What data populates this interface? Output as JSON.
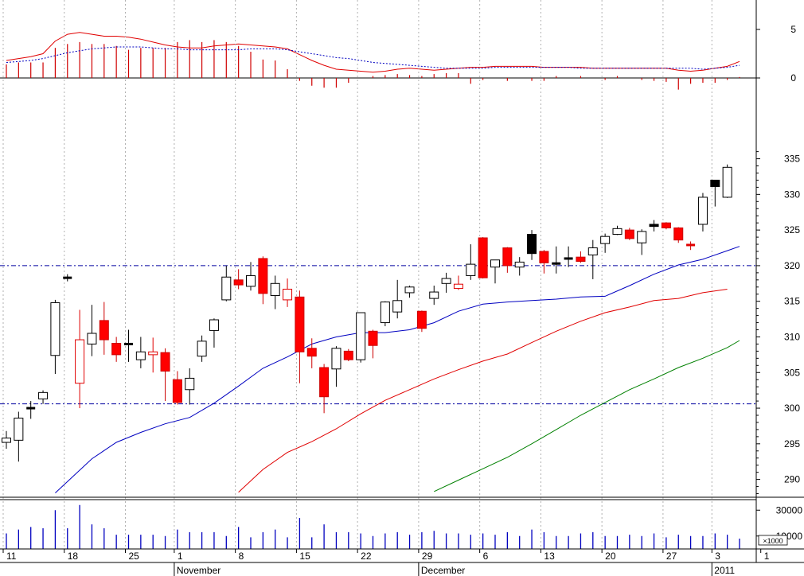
{
  "chart_data": {
    "type": "candlestick",
    "dates": [
      "2010-11-11",
      "2010-11-12",
      "2010-11-15",
      "2010-11-16",
      "2010-11-17",
      "2010-11-18",
      "2010-11-19",
      "2010-11-22",
      "2010-11-23",
      "2010-11-24",
      "2010-11-25",
      "2010-11-26",
      "2010-11-29",
      "2010-11-30",
      "2010-12-01",
      "2010-12-02",
      "2010-12-03",
      "2010-12-06",
      "2010-12-07",
      "2010-12-08",
      "2010-12-09",
      "2010-12-10",
      "2010-12-13",
      "2010-12-14",
      "2010-12-15",
      "2010-12-16",
      "2010-12-17",
      "2010-12-20",
      "2010-12-21",
      "2010-12-22",
      "2010-12-23",
      "2010-12-24",
      "2010-12-27",
      "2010-12-28",
      "2010-12-29",
      "2010-12-30",
      "2011-01-03",
      "2011-01-04",
      "2011-01-05",
      "2011-01-06",
      "2011-01-07",
      "2011-01-10",
      "2011-01-11",
      "2011-01-12",
      "2011-01-13",
      "2011-01-14",
      "2011-01-17",
      "2011-01-18",
      "2011-01-19",
      "2011-01-20",
      "2011-01-21",
      "2011-01-24",
      "2011-01-25",
      "2011-01-26",
      "2011-01-27",
      "2011-01-28",
      "2011-01-31",
      "2011-02-01",
      "2011-02-02",
      "2011-02-03",
      "2011-02-04"
    ],
    "candles": [
      {
        "o": 295.2,
        "h": 296.8,
        "l": 294.3,
        "c": 295.8,
        "color": "white"
      },
      {
        "o": 295.5,
        "h": 299.5,
        "l": 292.5,
        "c": 298.6,
        "color": "white"
      },
      {
        "o": 300.0,
        "h": 301.0,
        "l": 298.5,
        "c": 300.0,
        "color": "doji"
      },
      {
        "o": 301.3,
        "h": 302.5,
        "l": 300.6,
        "c": 302.2,
        "color": "white"
      },
      {
        "o": 307.4,
        "h": 315.2,
        "l": 304.8,
        "c": 314.8,
        "color": "white"
      },
      {
        "o": 318.3,
        "h": 318.8,
        "l": 317.8,
        "c": 318.3,
        "color": "black"
      },
      {
        "o": 309.6,
        "h": 313.8,
        "l": 300.0,
        "c": 303.5,
        "color": "red-hollow"
      },
      {
        "o": 309.0,
        "h": 314.5,
        "l": 307.3,
        "c": 310.5,
        "color": "white"
      },
      {
        "o": 312.3,
        "h": 314.9,
        "l": 307.5,
        "c": 309.6,
        "color": "red"
      },
      {
        "o": 309.1,
        "h": 310.0,
        "l": 306.5,
        "c": 307.5,
        "color": "red"
      },
      {
        "o": 309.0,
        "h": 311.0,
        "l": 306.5,
        "c": 309.0,
        "color": "doji"
      },
      {
        "o": 306.8,
        "h": 310.0,
        "l": 305.6,
        "c": 307.9,
        "color": "white"
      },
      {
        "o": 307.9,
        "h": 309.9,
        "l": 305.0,
        "c": 307.5,
        "color": "red-hollow"
      },
      {
        "o": 307.8,
        "h": 308.4,
        "l": 301.0,
        "c": 305.2,
        "color": "red"
      },
      {
        "o": 304.0,
        "h": 305.2,
        "l": 300.5,
        "c": 300.8,
        "color": "red"
      },
      {
        "o": 302.6,
        "h": 305.6,
        "l": 300.5,
        "c": 304.2,
        "color": "white"
      },
      {
        "o": 307.3,
        "h": 310.2,
        "l": 306.5,
        "c": 309.4,
        "color": "white"
      },
      {
        "o": 310.9,
        "h": 312.6,
        "l": 308.5,
        "c": 312.4,
        "color": "white"
      },
      {
        "o": 315.2,
        "h": 320.0,
        "l": 315.0,
        "c": 318.4,
        "color": "white"
      },
      {
        "o": 318.0,
        "h": 319.5,
        "l": 316.7,
        "c": 317.3,
        "color": "red"
      },
      {
        "o": 317.1,
        "h": 320.5,
        "l": 316.5,
        "c": 318.6,
        "color": "white"
      },
      {
        "o": 321.0,
        "h": 321.3,
        "l": 314.6,
        "c": 316.1,
        "color": "red"
      },
      {
        "o": 315.8,
        "h": 318.6,
        "l": 313.9,
        "c": 317.5,
        "color": "white"
      },
      {
        "o": 316.7,
        "h": 318.2,
        "l": 314.2,
        "c": 315.2,
        "color": "red-hollow"
      },
      {
        "o": 315.6,
        "h": 316.5,
        "l": 303.5,
        "c": 307.9,
        "color": "red"
      },
      {
        "o": 308.4,
        "h": 309.8,
        "l": 305.6,
        "c": 307.3,
        "color": "red"
      },
      {
        "o": 305.7,
        "h": 306.2,
        "l": 299.3,
        "c": 301.6,
        "color": "red"
      },
      {
        "o": 305.5,
        "h": 308.7,
        "l": 303.0,
        "c": 308.4,
        "color": "white"
      },
      {
        "o": 308.0,
        "h": 308.3,
        "l": 306.6,
        "c": 306.8,
        "color": "red"
      },
      {
        "o": 306.8,
        "h": 313.4,
        "l": 306.4,
        "c": 313.4,
        "color": "white"
      },
      {
        "o": 310.8,
        "h": 311.0,
        "l": 307.0,
        "c": 308.8,
        "color": "red"
      },
      {
        "o": 312.0,
        "h": 315.0,
        "l": 311.5,
        "c": 314.9,
        "color": "white"
      },
      {
        "o": 313.5,
        "h": 318.0,
        "l": 312.6,
        "c": 315.1,
        "color": "white"
      },
      {
        "o": 316.2,
        "h": 317.2,
        "l": 315.5,
        "c": 317.0,
        "color": "white"
      },
      {
        "o": 313.6,
        "h": 313.7,
        "l": 310.7,
        "c": 311.2,
        "color": "red"
      },
      {
        "o": 315.4,
        "h": 317.2,
        "l": 314.5,
        "c": 316.3,
        "color": "white"
      },
      {
        "o": 317.5,
        "h": 319.0,
        "l": 316.2,
        "c": 318.2,
        "color": "white"
      },
      {
        "o": 317.4,
        "h": 318.6,
        "l": 316.6,
        "c": 316.8,
        "color": "red-hollow"
      },
      {
        "o": 318.6,
        "h": 323.0,
        "l": 318.0,
        "c": 320.2,
        "color": "white"
      },
      {
        "o": 323.9,
        "h": 324.0,
        "l": 318.2,
        "c": 318.3,
        "color": "red"
      },
      {
        "o": 319.8,
        "h": 320.3,
        "l": 317.5,
        "c": 320.8,
        "color": "white"
      },
      {
        "o": 322.5,
        "h": 322.6,
        "l": 319.0,
        "c": 320.0,
        "color": "red"
      },
      {
        "o": 319.8,
        "h": 321.2,
        "l": 318.6,
        "c": 320.5,
        "color": "white"
      },
      {
        "o": 321.7,
        "h": 325.0,
        "l": 320.8,
        "c": 324.4,
        "color": "black"
      },
      {
        "o": 322.0,
        "h": 322.2,
        "l": 318.9,
        "c": 320.4,
        "color": "red"
      },
      {
        "o": 320.1,
        "h": 322.7,
        "l": 318.9,
        "c": 320.3,
        "color": "white"
      },
      {
        "o": 321.0,
        "h": 322.7,
        "l": 319.8,
        "c": 321.0,
        "color": "doji"
      },
      {
        "o": 321.2,
        "h": 322.0,
        "l": 320.4,
        "c": 320.6,
        "color": "red"
      },
      {
        "o": 321.5,
        "h": 323.6,
        "l": 318.1,
        "c": 322.5,
        "color": "white"
      },
      {
        "o": 323.1,
        "h": 324.5,
        "l": 321.8,
        "c": 324.1,
        "color": "white"
      },
      {
        "o": 324.4,
        "h": 325.6,
        "l": 324.3,
        "c": 325.2,
        "color": "white"
      },
      {
        "o": 325.0,
        "h": 325.3,
        "l": 323.6,
        "c": 323.8,
        "color": "red"
      },
      {
        "o": 323.2,
        "h": 325.1,
        "l": 321.5,
        "c": 324.8,
        "color": "white"
      },
      {
        "o": 325.5,
        "h": 326.4,
        "l": 324.8,
        "c": 325.8,
        "color": "black"
      },
      {
        "o": 326.0,
        "h": 326.1,
        "l": 325.1,
        "c": 325.3,
        "color": "red"
      },
      {
        "o": 325.3,
        "h": 325.4,
        "l": 323.2,
        "c": 323.6,
        "color": "red"
      },
      {
        "o": 322.9,
        "h": 323.4,
        "l": 322.2,
        "c": 322.7,
        "color": "red"
      },
      {
        "o": 325.8,
        "h": 330.2,
        "l": 324.8,
        "c": 329.6,
        "color": "white"
      },
      {
        "o": 331.1,
        "h": 332.0,
        "l": 328.3,
        "c": 332.0,
        "color": "black"
      },
      {
        "o": 329.6,
        "h": 334.2,
        "l": 329.5,
        "c": 333.8,
        "color": "white"
      }
    ],
    "moving_averages": [
      {
        "color": "#0000c0",
        "points": [
          [
            4,
            288.1
          ],
          [
            7,
            292.9
          ],
          [
            9,
            295.2
          ],
          [
            11,
            296.6
          ],
          [
            13,
            297.8
          ],
          [
            15,
            298.7
          ],
          [
            17,
            300.7
          ],
          [
            19,
            303.1
          ],
          [
            21,
            305.6
          ],
          [
            23,
            307.2
          ],
          [
            25,
            309.0
          ],
          [
            27,
            310.0
          ],
          [
            29,
            310.6
          ],
          [
            31,
            310.6
          ],
          [
            33,
            311.0
          ],
          [
            35,
            312.0
          ],
          [
            37,
            313.6
          ],
          [
            39,
            314.6
          ],
          [
            41,
            314.9
          ],
          [
            43,
            315.1
          ],
          [
            45,
            315.3
          ],
          [
            47,
            315.6
          ],
          [
            49,
            315.7
          ],
          [
            51,
            317.2
          ],
          [
            53,
            318.8
          ],
          [
            55,
            320.1
          ],
          [
            57,
            320.9
          ],
          [
            59,
            322.1
          ],
          [
            60,
            322.7
          ]
        ]
      },
      {
        "color": "#e00000",
        "points": [
          [
            19,
            288.2
          ],
          [
            21,
            291.4
          ],
          [
            23,
            293.8
          ],
          [
            25,
            295.3
          ],
          [
            27,
            297.1
          ],
          [
            29,
            299.2
          ],
          [
            31,
            301.1
          ],
          [
            33,
            302.6
          ],
          [
            35,
            304.1
          ],
          [
            37,
            305.4
          ],
          [
            39,
            306.6
          ],
          [
            41,
            307.6
          ],
          [
            43,
            309.2
          ],
          [
            45,
            310.8
          ],
          [
            47,
            312.2
          ],
          [
            49,
            313.4
          ],
          [
            51,
            314.2
          ],
          [
            53,
            315.1
          ],
          [
            55,
            315.4
          ],
          [
            57,
            316.2
          ],
          [
            59,
            316.7
          ]
        ]
      },
      {
        "color": "#008000",
        "points": [
          [
            35,
            288.3
          ],
          [
            37,
            289.9
          ],
          [
            39,
            291.5
          ],
          [
            41,
            293.1
          ],
          [
            43,
            295.0
          ],
          [
            45,
            297.0
          ],
          [
            47,
            299.0
          ],
          [
            49,
            300.8
          ],
          [
            51,
            302.6
          ],
          [
            53,
            304.1
          ],
          [
            55,
            305.7
          ],
          [
            57,
            307.0
          ],
          [
            59,
            308.5
          ],
          [
            60,
            309.5
          ]
        ]
      }
    ],
    "horizontal_lines": [
      320,
      300.6
    ],
    "ylim": [
      287.5,
      345
    ],
    "yticks": [
      "335",
      "330",
      "325",
      "320",
      "315",
      "310",
      "305",
      "300",
      "295",
      "290"
    ],
    "macd": {
      "ylim": [
        -1.6,
        9.2
      ],
      "yticks": [
        "5",
        "0"
      ],
      "line": [
        1.8,
        2.0,
        2.2,
        2.5,
        3.8,
        4.5,
        4.7,
        4.5,
        4.3,
        4.3,
        4.2,
        4.0,
        3.7,
        3.4,
        3.2,
        3.1,
        3.1,
        3.3,
        3.4,
        3.5,
        3.4,
        3.3,
        3.2,
        3.0,
        2.4,
        1.8,
        1.3,
        0.9,
        0.8,
        0.7,
        0.6,
        0.7,
        0.9,
        1.0,
        0.9,
        0.8,
        0.9,
        1.0,
        1.1,
        1.1,
        1.2,
        1.2,
        1.2,
        1.2,
        1.1,
        1.1,
        1.1,
        1.1,
        1.0,
        1.0,
        1.0,
        1.0,
        1.0,
        1.0,
        1.0,
        0.8,
        0.7,
        0.8,
        1.0,
        1.2,
        1.7
      ],
      "signal": [
        1.6,
        1.7,
        1.8,
        2.0,
        2.3,
        2.6,
        2.8,
        3.0,
        3.1,
        3.2,
        3.2,
        3.2,
        3.1,
        3.0,
        3.0,
        2.9,
        2.9,
        2.9,
        2.9,
        2.9,
        3.0,
        3.0,
        3.0,
        2.9,
        2.7,
        2.5,
        2.3,
        2.1,
        2.0,
        1.8,
        1.6,
        1.5,
        1.4,
        1.3,
        1.2,
        1.1,
        1.0,
        1.0,
        1.0,
        1.0,
        1.1,
        1.1,
        1.1,
        1.1,
        1.1,
        1.1,
        1.1,
        1.0,
        1.0,
        1.0,
        1.0,
        1.0,
        1.0,
        1.0,
        1.0,
        1.0,
        1.0,
        0.9,
        1.0,
        1.1,
        1.3
      ],
      "hist": [
        1.4,
        1.6,
        1.6,
        1.6,
        3.1,
        3.5,
        3.7,
        3.5,
        3.5,
        3.3,
        2.9,
        3.1,
        3.1,
        3.1,
        3.7,
        3.9,
        3.7,
        3.9,
        3.7,
        3.3,
        2.7,
        1.9,
        1.8,
        0.9,
        -0.3,
        -0.8,
        -1.0,
        -1.0,
        -0.5,
        0,
        0.2,
        0.3,
        0.4,
        0.3,
        0.2,
        0.4,
        0.5,
        0.5,
        -0.6,
        -0.2,
        0,
        -0.3,
        0,
        -0.3,
        -0.3,
        0.2,
        0,
        0.2,
        0,
        -0.2,
        0.2,
        0,
        -0.2,
        -0.3,
        -0.4,
        -1.2,
        -0.6,
        -0.5,
        -0.5,
        -0.2,
        0.1
      ]
    },
    "volume": {
      "ylim": [
        0,
        40000
      ],
      "yticks": [
        "30000",
        "10000"
      ],
      "unit": "×1000",
      "values": [
        12000,
        15000,
        17000,
        16000,
        30000,
        16000,
        34000,
        19000,
        16000,
        11000,
        11000,
        11000,
        11000,
        10000,
        15000,
        13000,
        13000,
        13000,
        10000,
        17000,
        9000,
        13000,
        15000,
        9000,
        24000,
        9000,
        19000,
        13000,
        13000,
        12000,
        10000,
        12000,
        13000,
        11000,
        13000,
        14000,
        12000,
        12000,
        11000,
        12000,
        11000,
        13000,
        10000,
        15000,
        13000,
        10000,
        10000,
        12000,
        13000,
        10000,
        10000,
        11000,
        10000,
        12000,
        9000,
        11000,
        10000,
        10000,
        12000,
        11000,
        8000
      ]
    },
    "x_day_labels": [
      {
        "i": 0,
        "label": "11"
      },
      {
        "i": 5,
        "label": "18"
      },
      {
        "i": 10,
        "label": "25"
      },
      {
        "i": 14,
        "label": "1"
      },
      {
        "i": 19,
        "label": "8"
      },
      {
        "i": 24,
        "label": "15"
      },
      {
        "i": 29,
        "label": "22"
      },
      {
        "i": 34,
        "label": "29"
      },
      {
        "i": 39,
        "label": "6"
      },
      {
        "i": 44,
        "label": "13"
      },
      {
        "i": 49,
        "label": "20"
      },
      {
        "i": 54,
        "label": "27"
      },
      {
        "i": 58,
        "label": "3"
      },
      {
        "i": 62,
        "label": "1"
      }
    ],
    "x_month_labels": [
      {
        "i": 14,
        "label": "November"
      },
      {
        "i": 34,
        "label": "December"
      },
      {
        "i": 58,
        "label": "2011"
      }
    ],
    "grid": true
  }
}
